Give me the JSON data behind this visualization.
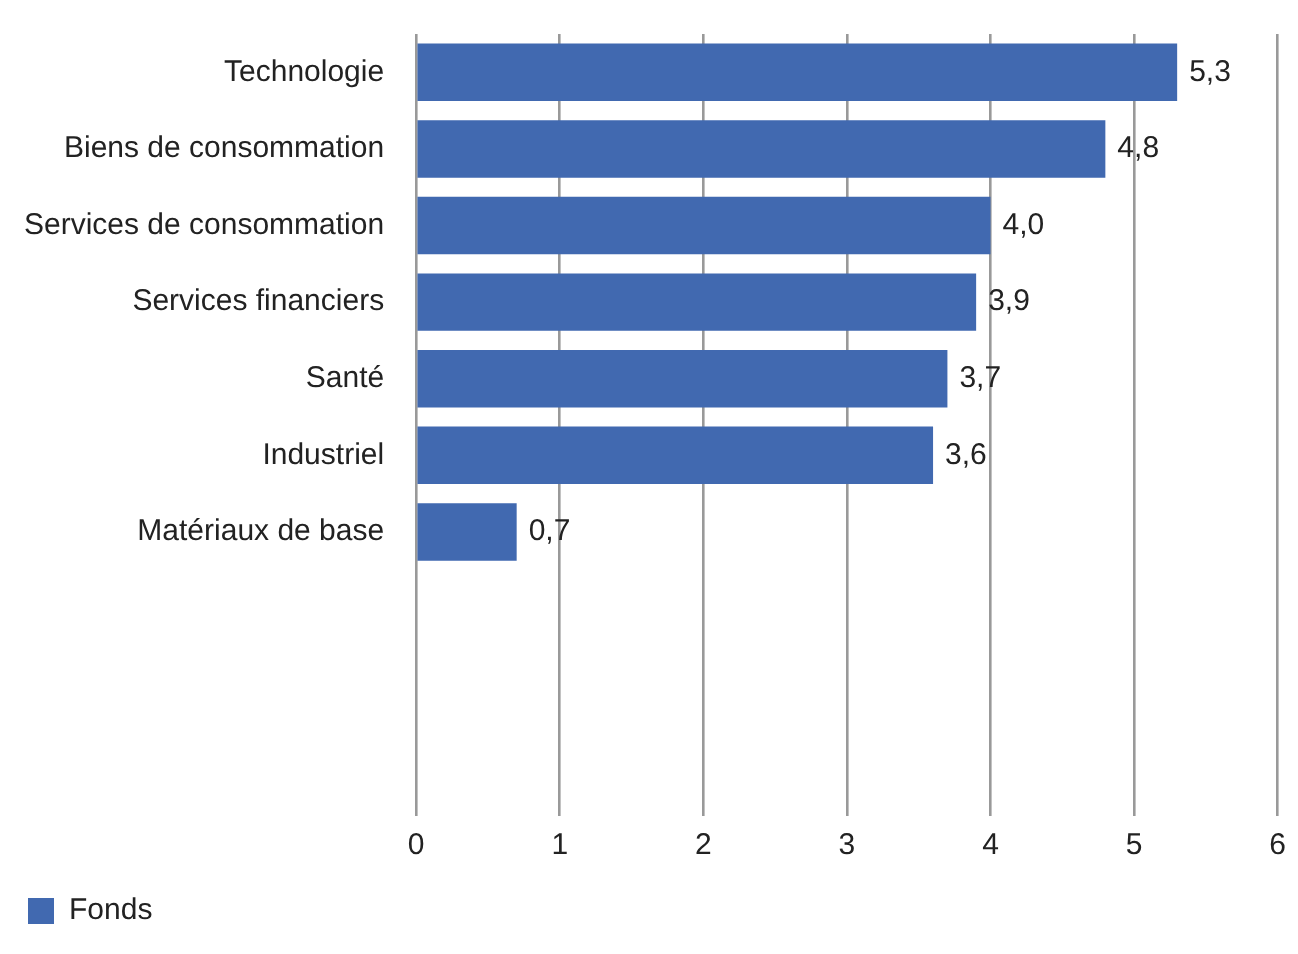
{
  "chart_data": {
    "type": "bar",
    "orientation": "horizontal",
    "categories": [
      "Technologie",
      "Biens de consommation",
      "Services de consommation",
      "Services financiers",
      "Santé",
      "Industriel",
      "Matériaux de base",
      null,
      null,
      null
    ],
    "series": [
      {
        "name": "Fonds",
        "color": "#4169b0",
        "values": [
          5.3,
          4.8,
          4.0,
          3.9,
          3.7,
          3.6,
          0.7,
          null,
          null,
          null
        ],
        "value_labels": [
          "5,3",
          "4,8",
          "4,0",
          "3,9",
          "3,7",
          "3,6",
          "0,7",
          null,
          null,
          null
        ]
      }
    ],
    "xlim": [
      0,
      6
    ],
    "xticks": [
      0,
      1,
      2,
      3,
      4,
      5,
      6
    ],
    "grid": "x",
    "legend": "bottom left"
  }
}
